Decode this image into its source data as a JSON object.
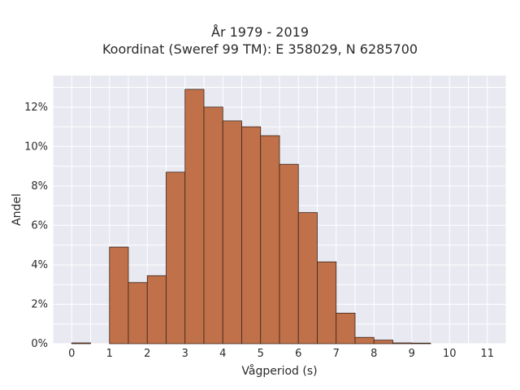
{
  "chart_data": {
    "type": "bar",
    "title": "År 1979 - 2019",
    "subtitle": "Koordinat (Sweref 99 TM): E 358029, N 6285700",
    "xlabel": "Vågperiod (s)",
    "ylabel": "Andel",
    "xlim": [
      -0.5,
      11.5
    ],
    "ylim": [
      0,
      0.136
    ],
    "x_ticks": [
      0,
      1,
      2,
      3,
      4,
      5,
      6,
      7,
      8,
      9,
      10,
      11
    ],
    "y_ticks": [
      0,
      0.02,
      0.04,
      0.06,
      0.08,
      0.1,
      0.12
    ],
    "y_tick_labels": [
      "0%",
      "2%",
      "4%",
      "6%",
      "8%",
      "10%",
      "12%"
    ],
    "bin_width": 0.5,
    "bins": [
      {
        "x0": 0.0,
        "value": 0.0004
      },
      {
        "x0": 1.0,
        "value": 0.049
      },
      {
        "x0": 1.5,
        "value": 0.031
      },
      {
        "x0": 2.0,
        "value": 0.0345
      },
      {
        "x0": 2.5,
        "value": 0.087
      },
      {
        "x0": 3.0,
        "value": 0.129
      },
      {
        "x0": 3.5,
        "value": 0.12
      },
      {
        "x0": 4.0,
        "value": 0.113
      },
      {
        "x0": 4.5,
        "value": 0.11
      },
      {
        "x0": 5.0,
        "value": 0.1055
      },
      {
        "x0": 5.5,
        "value": 0.091
      },
      {
        "x0": 6.0,
        "value": 0.0665
      },
      {
        "x0": 6.5,
        "value": 0.0415
      },
      {
        "x0": 7.0,
        "value": 0.0155
      },
      {
        "x0": 7.5,
        "value": 0.0032
      },
      {
        "x0": 8.0,
        "value": 0.0018
      },
      {
        "x0": 8.5,
        "value": 0.0004
      },
      {
        "x0": 9.0,
        "value": 0.0003
      }
    ],
    "grid": true,
    "colors": {
      "bar_fill": "#c0714a",
      "bar_edge": "#3a2418",
      "plot_bg": "#e9e9f2",
      "grid": "#ffffff"
    }
  }
}
